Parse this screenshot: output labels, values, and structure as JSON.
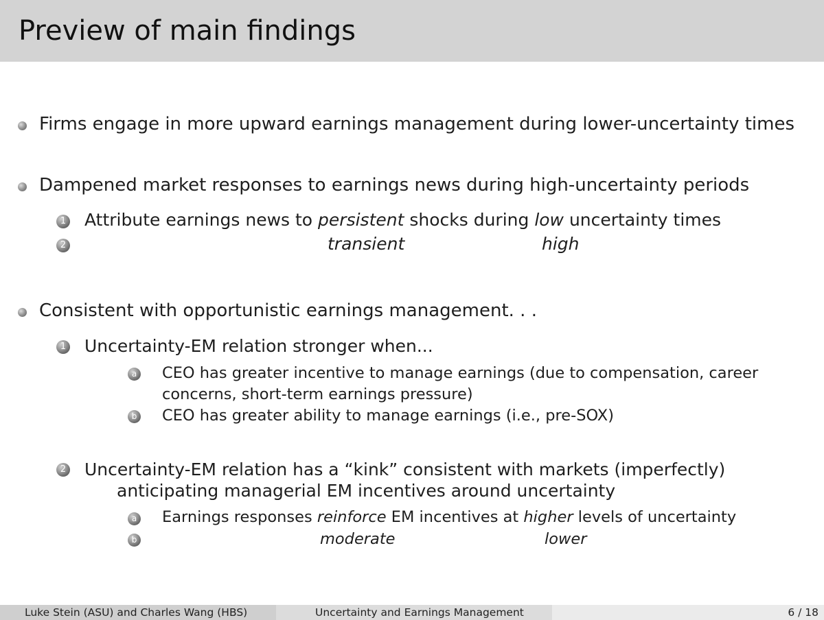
{
  "slide": {
    "title": "Preview of main findings"
  },
  "items": {
    "b1": "Firms engage in more upward earnings management during lower-uncertainty times",
    "b2": "Dampened market responses to earnings news during high-uncertainty periods",
    "b2_1": {
      "num": "1",
      "pre": "Attribute earnings news to ",
      "em1": "persistent",
      "mid": " shocks during ",
      "em2": "low",
      "post": " uncertainty times"
    },
    "b2_2": {
      "num": "2",
      "em1": "transient",
      "em2": "high"
    },
    "b3": "Consistent with opportunistic earnings management. . .",
    "b3_1": {
      "num": "1",
      "text": "Uncertainty-EM relation stronger when...",
      "a": {
        "letter": "a",
        "line1": "CEO has greater incentive to manage earnings (due to compensation, career",
        "line2": "concerns, short-term earnings pressure)"
      },
      "b": {
        "letter": "b",
        "text": "CEO has greater ability to manage earnings (i.e., pre-SOX)"
      }
    },
    "b3_2": {
      "num": "2",
      "line1": "Uncertainty-EM relation has a “kink” consistent with markets (imperfectly)",
      "line2": "anticipating managerial EM incentives around uncertainty",
      "a": {
        "letter": "a",
        "pre": "Earnings responses ",
        "em1": "reinforce",
        "mid": " EM incentives at ",
        "em2": "higher",
        "post": " levels of uncertainty"
      },
      "b": {
        "letter": "b",
        "em1": "moderate",
        "em2": "lower"
      }
    }
  },
  "footer": {
    "authors": "Luke Stein (ASU) and Charles Wang (HBS)",
    "short_title": "Uncertainty and Earnings Management",
    "page": "6 / 18"
  },
  "colors": {
    "title_bar": "#d3d3d3",
    "footer_left": "#cfcfcf",
    "footer_mid": "#dcdcdc",
    "footer_right": "#ebebeb"
  }
}
